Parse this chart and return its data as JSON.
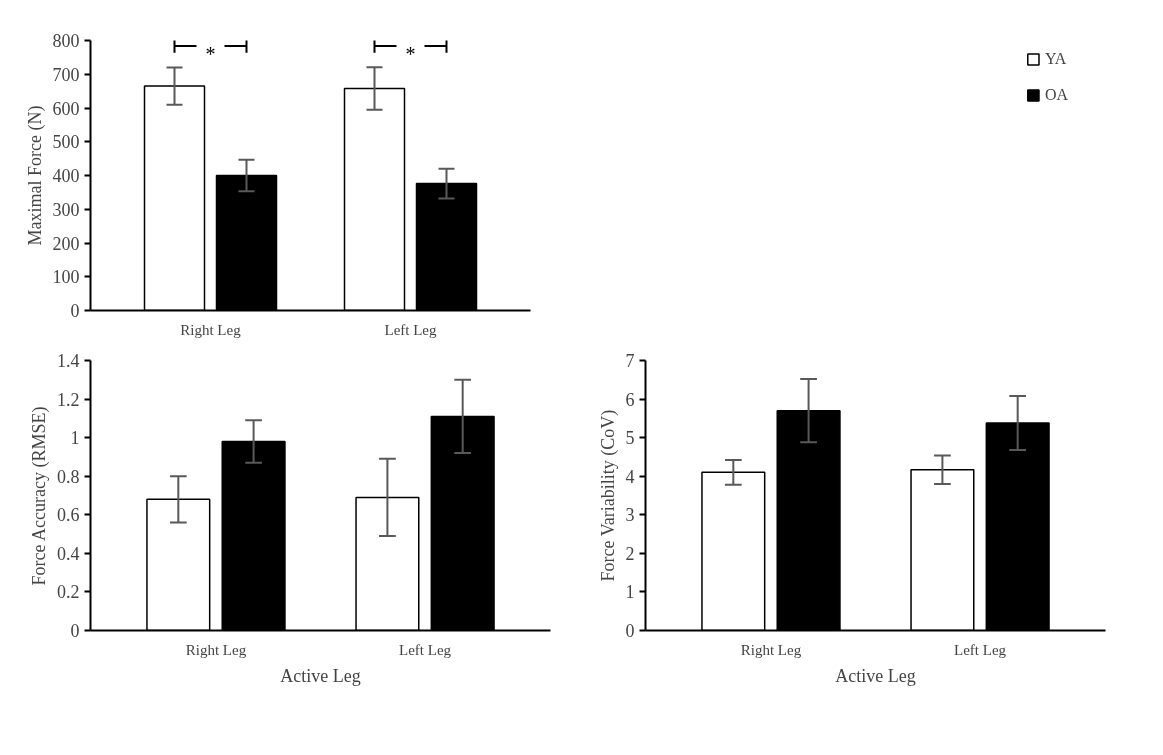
{
  "chart_data": [
    {
      "type": "bar",
      "ylabel": "Maximal Force (N)",
      "categories": [
        "Right Leg",
        "Left Leg"
      ],
      "ylim": [
        0,
        800
      ],
      "yticks": [
        0,
        100,
        200,
        300,
        400,
        500,
        600,
        700,
        800
      ],
      "grid": false,
      "legend": "top right",
      "series": [
        {
          "name": "YA",
          "color": "#ffffff",
          "values": [
            665,
            658
          ],
          "errors": [
            55,
            63
          ]
        },
        {
          "name": "OA",
          "color": "#000000",
          "values": [
            400,
            376
          ],
          "errors": [
            47,
            44
          ]
        }
      ],
      "annotations": [
        "*",
        "*"
      ]
    },
    {
      "type": "bar",
      "ylabel": "Force Accuracy (RMSE)",
      "xlabel": "Active Leg",
      "categories": [
        "Right Leg",
        "Left Leg"
      ],
      "ylim": [
        0,
        1.4
      ],
      "yticks": [
        0,
        0.2,
        0.4,
        0.6,
        0.8,
        1,
        1.2,
        1.4
      ],
      "grid": false,
      "legend": false,
      "series": [
        {
          "color": "#ffffff",
          "values": [
            0.68,
            0.69
          ],
          "errors": [
            0.12,
            0.2
          ]
        },
        {
          "color": "#000000",
          "values": [
            0.98,
            1.11
          ],
          "errors": [
            0.11,
            0.19
          ]
        }
      ]
    },
    {
      "type": "bar",
      "ylabel": "Force Variability (CoV)",
      "xlabel": "Active Leg",
      "categories": [
        "Right Leg",
        "Left Leg"
      ],
      "ylim": [
        0,
        7
      ],
      "yticks": [
        0,
        1,
        2,
        3,
        4,
        5,
        6,
        7
      ],
      "grid": false,
      "legend": false,
      "series": [
        {
          "color": "#ffffff",
          "values": [
            4.1,
            4.17
          ],
          "errors": [
            0.32,
            0.37
          ]
        },
        {
          "color": "#000000",
          "values": [
            5.7,
            5.38
          ],
          "errors": [
            0.82,
            0.7
          ]
        }
      ]
    }
  ]
}
